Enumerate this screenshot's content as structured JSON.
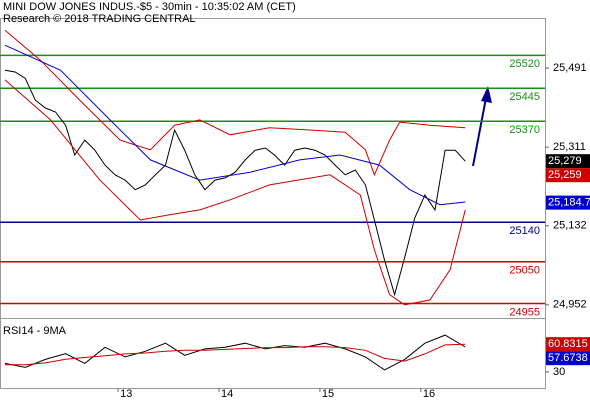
{
  "chart_data": [
    {
      "type": "line",
      "title": "MINI DOW JONES INDUS.-$5 - 30min - 10:35:02 AM (CET)",
      "subtitle": "Research © 2018 TRADING CENTRAL",
      "xlim": [
        11.83,
        17.23
      ],
      "ylim": [
        24922,
        25605
      ],
      "yticks": [
        {
          "value": 25491,
          "label": "25,491"
        },
        {
          "value": 25311,
          "label": "25,311"
        },
        {
          "value": 25132,
          "label": "25,132"
        },
        {
          "value": 24952,
          "label": "24,952"
        }
      ],
      "series": [
        {
          "color": "#000000",
          "x": [
            11.88,
            11.98,
            12.08,
            12.18,
            12.28,
            12.38,
            12.48,
            12.57,
            12.67,
            12.77,
            12.87,
            12.97,
            13.07,
            13.17,
            13.27,
            13.37,
            13.47,
            13.56,
            13.66,
            13.76,
            13.86,
            13.96,
            14.06,
            14.16,
            14.26,
            14.36,
            14.46,
            14.55,
            14.65,
            14.75,
            14.85,
            14.95,
            15.05,
            15.15,
            15.25,
            15.35,
            15.45,
            15.54,
            15.64,
            15.74,
            15.84,
            15.94,
            16.04,
            16.14,
            16.24,
            16.34,
            16.44
          ],
          "values": [
            25486,
            25482,
            25468,
            25418,
            25400,
            25391,
            25361,
            25293,
            25327,
            25304,
            25270,
            25248,
            25236,
            25214,
            25225,
            25248,
            25270,
            25350,
            25304,
            25248,
            25214,
            25236,
            25241,
            25254,
            25282,
            25304,
            25309,
            25293,
            25270,
            25304,
            25309,
            25304,
            25293,
            25270,
            25248,
            25259,
            25225,
            25145,
            25054,
            24975,
            25060,
            25150,
            25202,
            25168,
            25304,
            25304,
            25279
          ]
        },
        {
          "color": "#cc0000",
          "x": [
            11.88,
            12.23,
            12.62,
            13.02,
            13.32,
            13.56,
            13.81,
            14.11,
            14.5,
            14.9,
            15.25,
            15.45,
            15.54,
            15.69,
            15.79,
            16.09,
            16.44
          ],
          "values": [
            25577,
            25509,
            25418,
            25327,
            25305,
            25361,
            25373,
            25339,
            25355,
            25350,
            25345,
            25305,
            25248,
            25327,
            25368,
            25361,
            25355
          ]
        },
        {
          "color": "#cc0000",
          "x": [
            11.88,
            12.33,
            12.82,
            13.22,
            13.51,
            13.81,
            14.11,
            14.5,
            15.1,
            15.4,
            15.54,
            15.69,
            15.84,
            16.09,
            16.29,
            16.44
          ],
          "values": [
            25464,
            25373,
            25236,
            25145,
            25157,
            25168,
            25191,
            25225,
            25248,
            25202,
            25077,
            24975,
            24952,
            24963,
            25032,
            25168
          ]
        },
        {
          "color": "#0000cc",
          "x": [
            11.88,
            12.43,
            12.92,
            13.32,
            13.81,
            14.31,
            14.8,
            15.2,
            15.59,
            15.89,
            16.19,
            16.44
          ],
          "values": [
            25543,
            25486,
            25373,
            25282,
            25236,
            25254,
            25282,
            25293,
            25270,
            25214,
            25180,
            25186
          ]
        }
      ],
      "levels": [
        {
          "value": 25520,
          "color": "#1a8c1a"
        },
        {
          "value": 25445,
          "color": "#1a8c1a"
        },
        {
          "value": 25370,
          "color": "#1a8c1a"
        },
        {
          "value": 25140,
          "color": "#00008b"
        },
        {
          "value": 25050,
          "color": "#cc0000"
        },
        {
          "value": 24955,
          "color": "#cc0000"
        }
      ],
      "price_tags": [
        {
          "value": 25279,
          "label": "25,279",
          "color": "#000000"
        },
        {
          "value": 25259,
          "label": "25,259",
          "color": "#cc0000"
        },
        {
          "value": 25184.7,
          "label": "25,184.7",
          "color": "#0000cc"
        }
      ]
    },
    {
      "type": "line",
      "title": "RSI14 - 9MA",
      "xlim": [
        11.83,
        17.23
      ],
      "ylim": [
        12,
        90
      ],
      "yticks": [
        30
      ],
      "xticks": [
        13,
        14,
        15,
        16
      ],
      "series": [
        {
          "color": "#000000",
          "x": [
            11.88,
            12.08,
            12.28,
            12.48,
            12.67,
            12.87,
            13.07,
            13.27,
            13.47,
            13.66,
            13.86,
            14.06,
            14.26,
            14.46,
            14.65,
            14.85,
            15.05,
            15.25,
            15.45,
            15.64,
            15.84,
            16.04,
            16.24,
            16.44
          ],
          "values": [
            39.4,
            34.9,
            43.9,
            50.2,
            39.4,
            57.4,
            46.6,
            52.9,
            61.9,
            48.4,
            55.6,
            57.4,
            61.9,
            55.6,
            59.2,
            57.4,
            61.9,
            55.6,
            46.6,
            32.2,
            43.9,
            61.9,
            70.9,
            57.7
          ]
        },
        {
          "color": "#cc0000",
          "x": [
            11.88,
            12.08,
            12.28,
            12.48,
            12.67,
            12.87,
            13.07,
            13.27,
            13.47,
            13.66,
            13.86,
            14.06,
            14.26,
            14.46,
            14.65,
            14.85,
            15.05,
            15.25,
            15.45,
            15.64,
            15.84,
            16.04,
            16.24,
            16.44
          ],
          "values": [
            38,
            38,
            40,
            44,
            46,
            48,
            50,
            51,
            53,
            54,
            54,
            55,
            56,
            57,
            57,
            58,
            58,
            57,
            54,
            45,
            42,
            50,
            60,
            60.8
          ]
        }
      ],
      "price_tags": [
        {
          "value": 60.8315,
          "color": "#cc0000"
        },
        {
          "value": 57.6738,
          "color": "#0000cc"
        }
      ]
    }
  ]
}
